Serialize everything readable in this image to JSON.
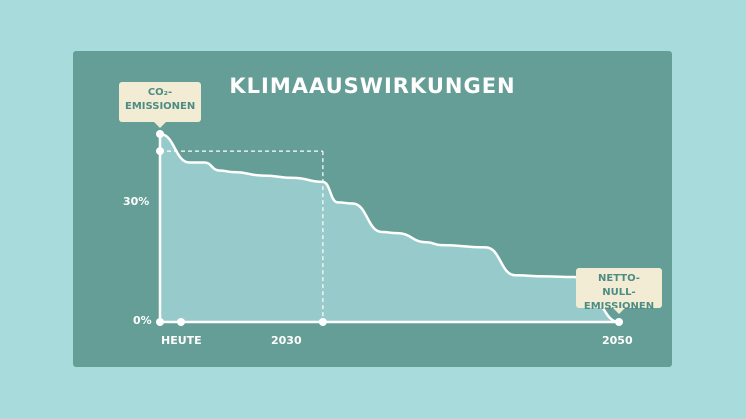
{
  "chart_data": {
    "type": "area",
    "title": "KLIMAAUSWIRKUNGEN",
    "x_tick_labels": [
      "HEUTE",
      "2030",
      "2050"
    ],
    "y_tick_labels": [
      "0%",
      "30%"
    ],
    "annotations": {
      "start_label_line1": "CO₂-",
      "start_label_line2": "EMISSIONEN",
      "end_label_line1": "NETTO-NULL-",
      "end_label_line2": "EMISSIONEN"
    },
    "x_axis": [
      "2019",
      "2050"
    ],
    "xlim": [
      2019,
      2050
    ],
    "ylim": [
      0,
      33
    ],
    "grid": false,
    "legend": "none",
    "markers": [
      {
        "x": 2019,
        "y": 33
      },
      {
        "x": 2019,
        "y": 30
      },
      {
        "x": 2019,
        "y": 0
      },
      {
        "x": 2030,
        "y": 0
      },
      {
        "x": 2050,
        "y": 0
      }
    ],
    "guide": {
      "x": 2030,
      "y": 30
    },
    "series": [
      {
        "x": [
          2019,
          2021,
          2022,
          2023,
          2024,
          2026,
          2028,
          2030,
          2031,
          2032,
          2034,
          2035,
          2037,
          2038,
          2041,
          2043,
          2045,
          2047,
          2048,
          2050
        ],
        "values": [
          33,
          28,
          28,
          26.6,
          26.3,
          25.7,
          25.3,
          24.6,
          21,
          20.8,
          15.8,
          15.6,
          14,
          13.5,
          13.1,
          8.2,
          8,
          7.9,
          4.2,
          0
        ]
      }
    ],
    "colors": {
      "card": "#659e96",
      "line": "#ffffff",
      "fill": "#97caca",
      "callout": "#f2ecd4",
      "callout_text": "#4d8c84"
    }
  }
}
